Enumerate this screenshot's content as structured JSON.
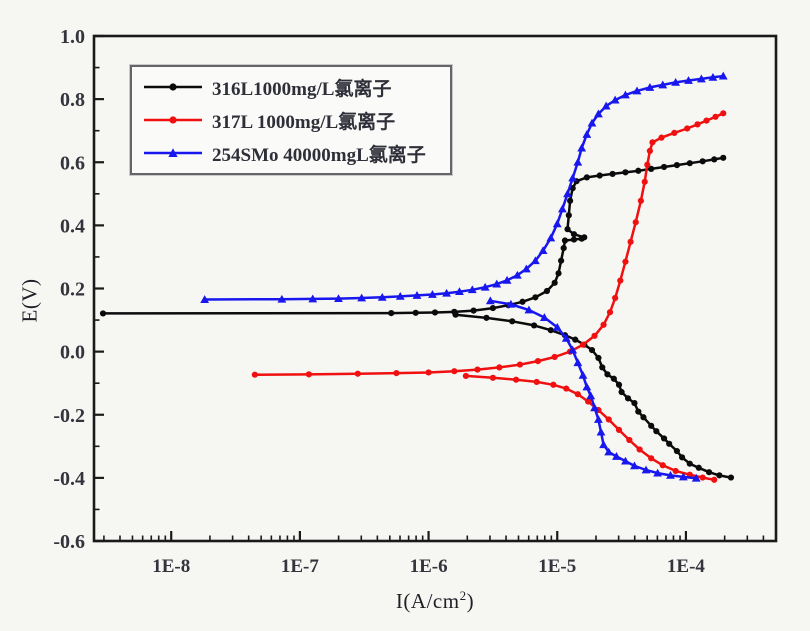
{
  "figure": {
    "kind": "potentiodynamic polarization curves",
    "background": "#f6f6f3"
  },
  "chart_data": {
    "type": "line",
    "title": "",
    "ylabel": "E(V)",
    "xlabel_parts": {
      "base": "I(A/cm",
      "sup": "2",
      "close": ")"
    },
    "x_scale": "log",
    "xlog_range": [
      -8.6,
      -3.3
    ],
    "ylim": [
      -0.6,
      1.0
    ],
    "grid": false,
    "legend_position": "upper-left",
    "x_major_ticks": [
      -8,
      -7,
      -6,
      -5,
      -4
    ],
    "x_tick_labels": [
      "1E-8",
      "1E-7",
      "1E-6",
      "1E-5",
      "1E-4"
    ],
    "y_major_ticks": [
      -0.6,
      -0.4,
      -0.2,
      0.0,
      0.2,
      0.4,
      0.6,
      0.8,
      1.0
    ],
    "y_tick_labels": [
      "-0.6",
      "-0.4",
      "-0.2",
      "0.0",
      "0.2",
      "0.4",
      "0.6",
      "0.8",
      "1.0"
    ],
    "axis_color": "#1a1a1a",
    "tick_label_color": "#33343c",
    "series": [
      {
        "name": "316L1000mg/L氯离子",
        "color": "#0b0b0b",
        "marker": "circle",
        "corrosion_potential_V": 0.12,
        "anodic": [
          [
            -8.53,
            0.121
          ],
          [
            -6.29,
            0.122
          ],
          [
            -6.1,
            0.123
          ],
          [
            -5.95,
            0.124
          ],
          [
            -5.8,
            0.126
          ],
          [
            -5.65,
            0.13
          ],
          [
            -5.5,
            0.138
          ],
          [
            -5.38,
            0.147
          ],
          [
            -5.27,
            0.158
          ],
          [
            -5.17,
            0.172
          ],
          [
            -5.08,
            0.192
          ],
          [
            -5.02,
            0.218
          ],
          [
            -4.99,
            0.248
          ],
          [
            -4.97,
            0.288
          ],
          [
            -4.95,
            0.328
          ],
          [
            -4.94,
            0.352
          ],
          [
            -4.87,
            0.355
          ],
          [
            -4.81,
            0.358
          ],
          [
            -4.79,
            0.362
          ],
          [
            -4.87,
            0.372
          ],
          [
            -4.92,
            0.388
          ],
          [
            -4.91,
            0.432
          ],
          [
            -4.9,
            0.478
          ],
          [
            -4.88,
            0.518
          ],
          [
            -4.85,
            0.54
          ],
          [
            -4.77,
            0.552
          ],
          [
            -4.67,
            0.558
          ],
          [
            -4.57,
            0.563
          ],
          [
            -4.47,
            0.568
          ],
          [
            -4.37,
            0.573
          ],
          [
            -4.27,
            0.579
          ],
          [
            -4.17,
            0.585
          ],
          [
            -4.07,
            0.591
          ],
          [
            -3.97,
            0.597
          ],
          [
            -3.87,
            0.603
          ],
          [
            -3.78,
            0.609
          ],
          [
            -3.71,
            0.614
          ]
        ],
        "cathodic": [
          [
            -5.79,
            0.117
          ],
          [
            -5.55,
            0.107
          ],
          [
            -5.35,
            0.096
          ],
          [
            -5.18,
            0.083
          ],
          [
            -5.05,
            0.068
          ],
          [
            -4.94,
            0.052
          ],
          [
            -4.86,
            0.038
          ],
          [
            -4.79,
            0.022
          ],
          [
            -4.73,
            0.005
          ],
          [
            -4.68,
            -0.02
          ],
          [
            -4.65,
            -0.05
          ],
          [
            -4.61,
            -0.072
          ],
          [
            -4.56,
            -0.086
          ],
          [
            -4.52,
            -0.105
          ],
          [
            -4.5,
            -0.128
          ],
          [
            -4.45,
            -0.148
          ],
          [
            -4.4,
            -0.163
          ],
          [
            -4.37,
            -0.19
          ],
          [
            -4.33,
            -0.208
          ],
          [
            -4.27,
            -0.235
          ],
          [
            -4.23,
            -0.252
          ],
          [
            -4.17,
            -0.275
          ],
          [
            -4.13,
            -0.292
          ],
          [
            -4.07,
            -0.315
          ],
          [
            -4.03,
            -0.335
          ],
          [
            -3.97,
            -0.355
          ],
          [
            -3.9,
            -0.368
          ],
          [
            -3.82,
            -0.382
          ],
          [
            -3.74,
            -0.392
          ],
          [
            -3.65,
            -0.399
          ]
        ]
      },
      {
        "name": "317L 1000mg/L氯离子",
        "color": "#f01010",
        "marker": "circle",
        "corrosion_potential_V": -0.07,
        "anodic": [
          [
            -7.35,
            -0.073
          ],
          [
            -6.93,
            -0.072
          ],
          [
            -6.55,
            -0.07
          ],
          [
            -6.25,
            -0.068
          ],
          [
            -6.0,
            -0.066
          ],
          [
            -5.8,
            -0.062
          ],
          [
            -5.62,
            -0.057
          ],
          [
            -5.45,
            -0.05
          ],
          [
            -5.29,
            -0.041
          ],
          [
            -5.15,
            -0.03
          ],
          [
            -5.02,
            -0.017
          ],
          [
            -4.9,
            0.0
          ],
          [
            -4.8,
            0.022
          ],
          [
            -4.71,
            0.05
          ],
          [
            -4.64,
            0.085
          ],
          [
            -4.59,
            0.125
          ],
          [
            -4.55,
            0.17
          ],
          [
            -4.51,
            0.225
          ],
          [
            -4.47,
            0.285
          ],
          [
            -4.43,
            0.348
          ],
          [
            -4.39,
            0.41
          ],
          [
            -4.35,
            0.478
          ],
          [
            -4.32,
            0.538
          ],
          [
            -4.3,
            0.592
          ],
          [
            -4.28,
            0.636
          ],
          [
            -4.26,
            0.663
          ],
          [
            -4.19,
            0.678
          ],
          [
            -4.09,
            0.693
          ],
          [
            -3.99,
            0.707
          ],
          [
            -3.91,
            0.72
          ],
          [
            -3.84,
            0.732
          ],
          [
            -3.77,
            0.744
          ],
          [
            -3.71,
            0.755
          ]
        ],
        "cathodic": [
          [
            -5.71,
            -0.077
          ],
          [
            -5.5,
            -0.083
          ],
          [
            -5.32,
            -0.089
          ],
          [
            -5.16,
            -0.096
          ],
          [
            -5.03,
            -0.105
          ],
          [
            -4.93,
            -0.117
          ],
          [
            -4.84,
            -0.135
          ],
          [
            -4.76,
            -0.158
          ],
          [
            -4.68,
            -0.185
          ],
          [
            -4.6,
            -0.215
          ],
          [
            -4.52,
            -0.248
          ],
          [
            -4.44,
            -0.28
          ],
          [
            -4.36,
            -0.31
          ],
          [
            -4.27,
            -0.338
          ],
          [
            -4.18,
            -0.36
          ],
          [
            -4.08,
            -0.378
          ],
          [
            -3.97,
            -0.39
          ],
          [
            -3.87,
            -0.399
          ],
          [
            -3.78,
            -0.406
          ]
        ]
      },
      {
        "name": "254SMo 40000mgL氯离子",
        "color": "#1717ee",
        "marker": "triangle",
        "corrosion_potential_V": 0.165,
        "anodic": [
          [
            -7.74,
            0.165
          ],
          [
            -7.14,
            0.166
          ],
          [
            -6.9,
            0.167
          ],
          [
            -6.7,
            0.168
          ],
          [
            -6.52,
            0.17
          ],
          [
            -6.36,
            0.172
          ],
          [
            -6.22,
            0.175
          ],
          [
            -6.09,
            0.178
          ],
          [
            -5.97,
            0.181
          ],
          [
            -5.86,
            0.185
          ],
          [
            -5.76,
            0.19
          ],
          [
            -5.66,
            0.196
          ],
          [
            -5.56,
            0.204
          ],
          [
            -5.47,
            0.214
          ],
          [
            -5.39,
            0.226
          ],
          [
            -5.31,
            0.242
          ],
          [
            -5.24,
            0.262
          ],
          [
            -5.17,
            0.288
          ],
          [
            -5.11,
            0.32
          ],
          [
            -5.05,
            0.36
          ],
          [
            -5.0,
            0.405
          ],
          [
            -4.96,
            0.452
          ],
          [
            -4.92,
            0.5
          ],
          [
            -4.88,
            0.55
          ],
          [
            -4.84,
            0.6
          ],
          [
            -4.81,
            0.645
          ],
          [
            -4.77,
            0.688
          ],
          [
            -4.73,
            0.724
          ],
          [
            -4.68,
            0.753
          ],
          [
            -4.62,
            0.778
          ],
          [
            -4.55,
            0.797
          ],
          [
            -4.47,
            0.813
          ],
          [
            -4.38,
            0.826
          ],
          [
            -4.28,
            0.837
          ],
          [
            -4.18,
            0.845
          ],
          [
            -4.08,
            0.853
          ],
          [
            -3.98,
            0.859
          ],
          [
            -3.88,
            0.864
          ],
          [
            -3.79,
            0.869
          ],
          [
            -3.71,
            0.873
          ]
        ],
        "cathodic": [
          [
            -5.52,
            0.161
          ],
          [
            -5.36,
            0.15
          ],
          [
            -5.22,
            0.132
          ],
          [
            -5.1,
            0.108
          ],
          [
            -5.0,
            0.077
          ],
          [
            -4.93,
            0.042
          ],
          [
            -4.88,
            0.005
          ],
          [
            -4.84,
            -0.035
          ],
          [
            -4.8,
            -0.075
          ],
          [
            -4.77,
            -0.112
          ],
          [
            -4.74,
            -0.14
          ],
          [
            -4.71,
            -0.178
          ],
          [
            -4.68,
            -0.215
          ],
          [
            -4.66,
            -0.255
          ],
          [
            -4.64,
            -0.295
          ],
          [
            -4.6,
            -0.318
          ],
          [
            -4.54,
            -0.332
          ],
          [
            -4.47,
            -0.347
          ],
          [
            -4.4,
            -0.362
          ],
          [
            -4.31,
            -0.375
          ],
          [
            -4.22,
            -0.385
          ],
          [
            -4.12,
            -0.392
          ],
          [
            -4.02,
            -0.397
          ],
          [
            -3.92,
            -0.401
          ]
        ]
      }
    ]
  }
}
